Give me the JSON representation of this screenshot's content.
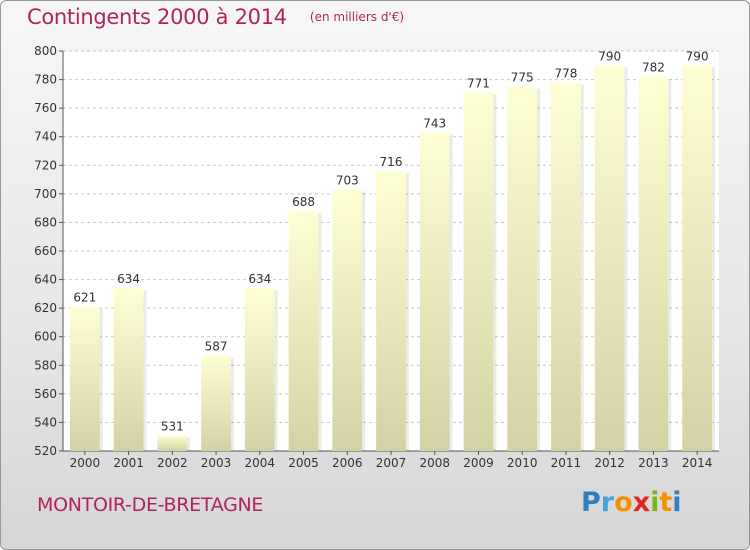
{
  "title": "Contingents 2000 à 2014",
  "subtitle": "(en milliers d'€)",
  "commune": "MONTOIR-DE-BRETAGNE",
  "logo": {
    "letters": [
      "P",
      "r",
      "o",
      "x",
      "i",
      "t",
      "i"
    ],
    "colors": [
      "#2f7fc0",
      "#4aa3d8",
      "#f39200",
      "#e52421",
      "#7ab51d",
      "#f39200",
      "#2f7fc0"
    ]
  },
  "chart_data": {
    "type": "bar",
    "categories": [
      "2000",
      "2001",
      "2002",
      "2003",
      "2004",
      "2005",
      "2006",
      "2007",
      "2008",
      "2009",
      "2010",
      "2011",
      "2012",
      "2013",
      "2014"
    ],
    "values": [
      621,
      634,
      531,
      587,
      634,
      688,
      703,
      716,
      743,
      771,
      775,
      778,
      790,
      782,
      790
    ],
    "title": "Contingents 2000 à 2014",
    "ylim": [
      520,
      800
    ],
    "yticks": [
      520,
      540,
      560,
      580,
      600,
      620,
      640,
      660,
      680,
      700,
      720,
      740,
      760,
      780,
      800
    ],
    "grid": true,
    "colors": {
      "bar_top": "#ffffd4",
      "bar_bottom": "#d2d2a4",
      "bar_label": "#333333",
      "grid": "#c8c8c8",
      "plot_bg": "#ffffff"
    }
  }
}
